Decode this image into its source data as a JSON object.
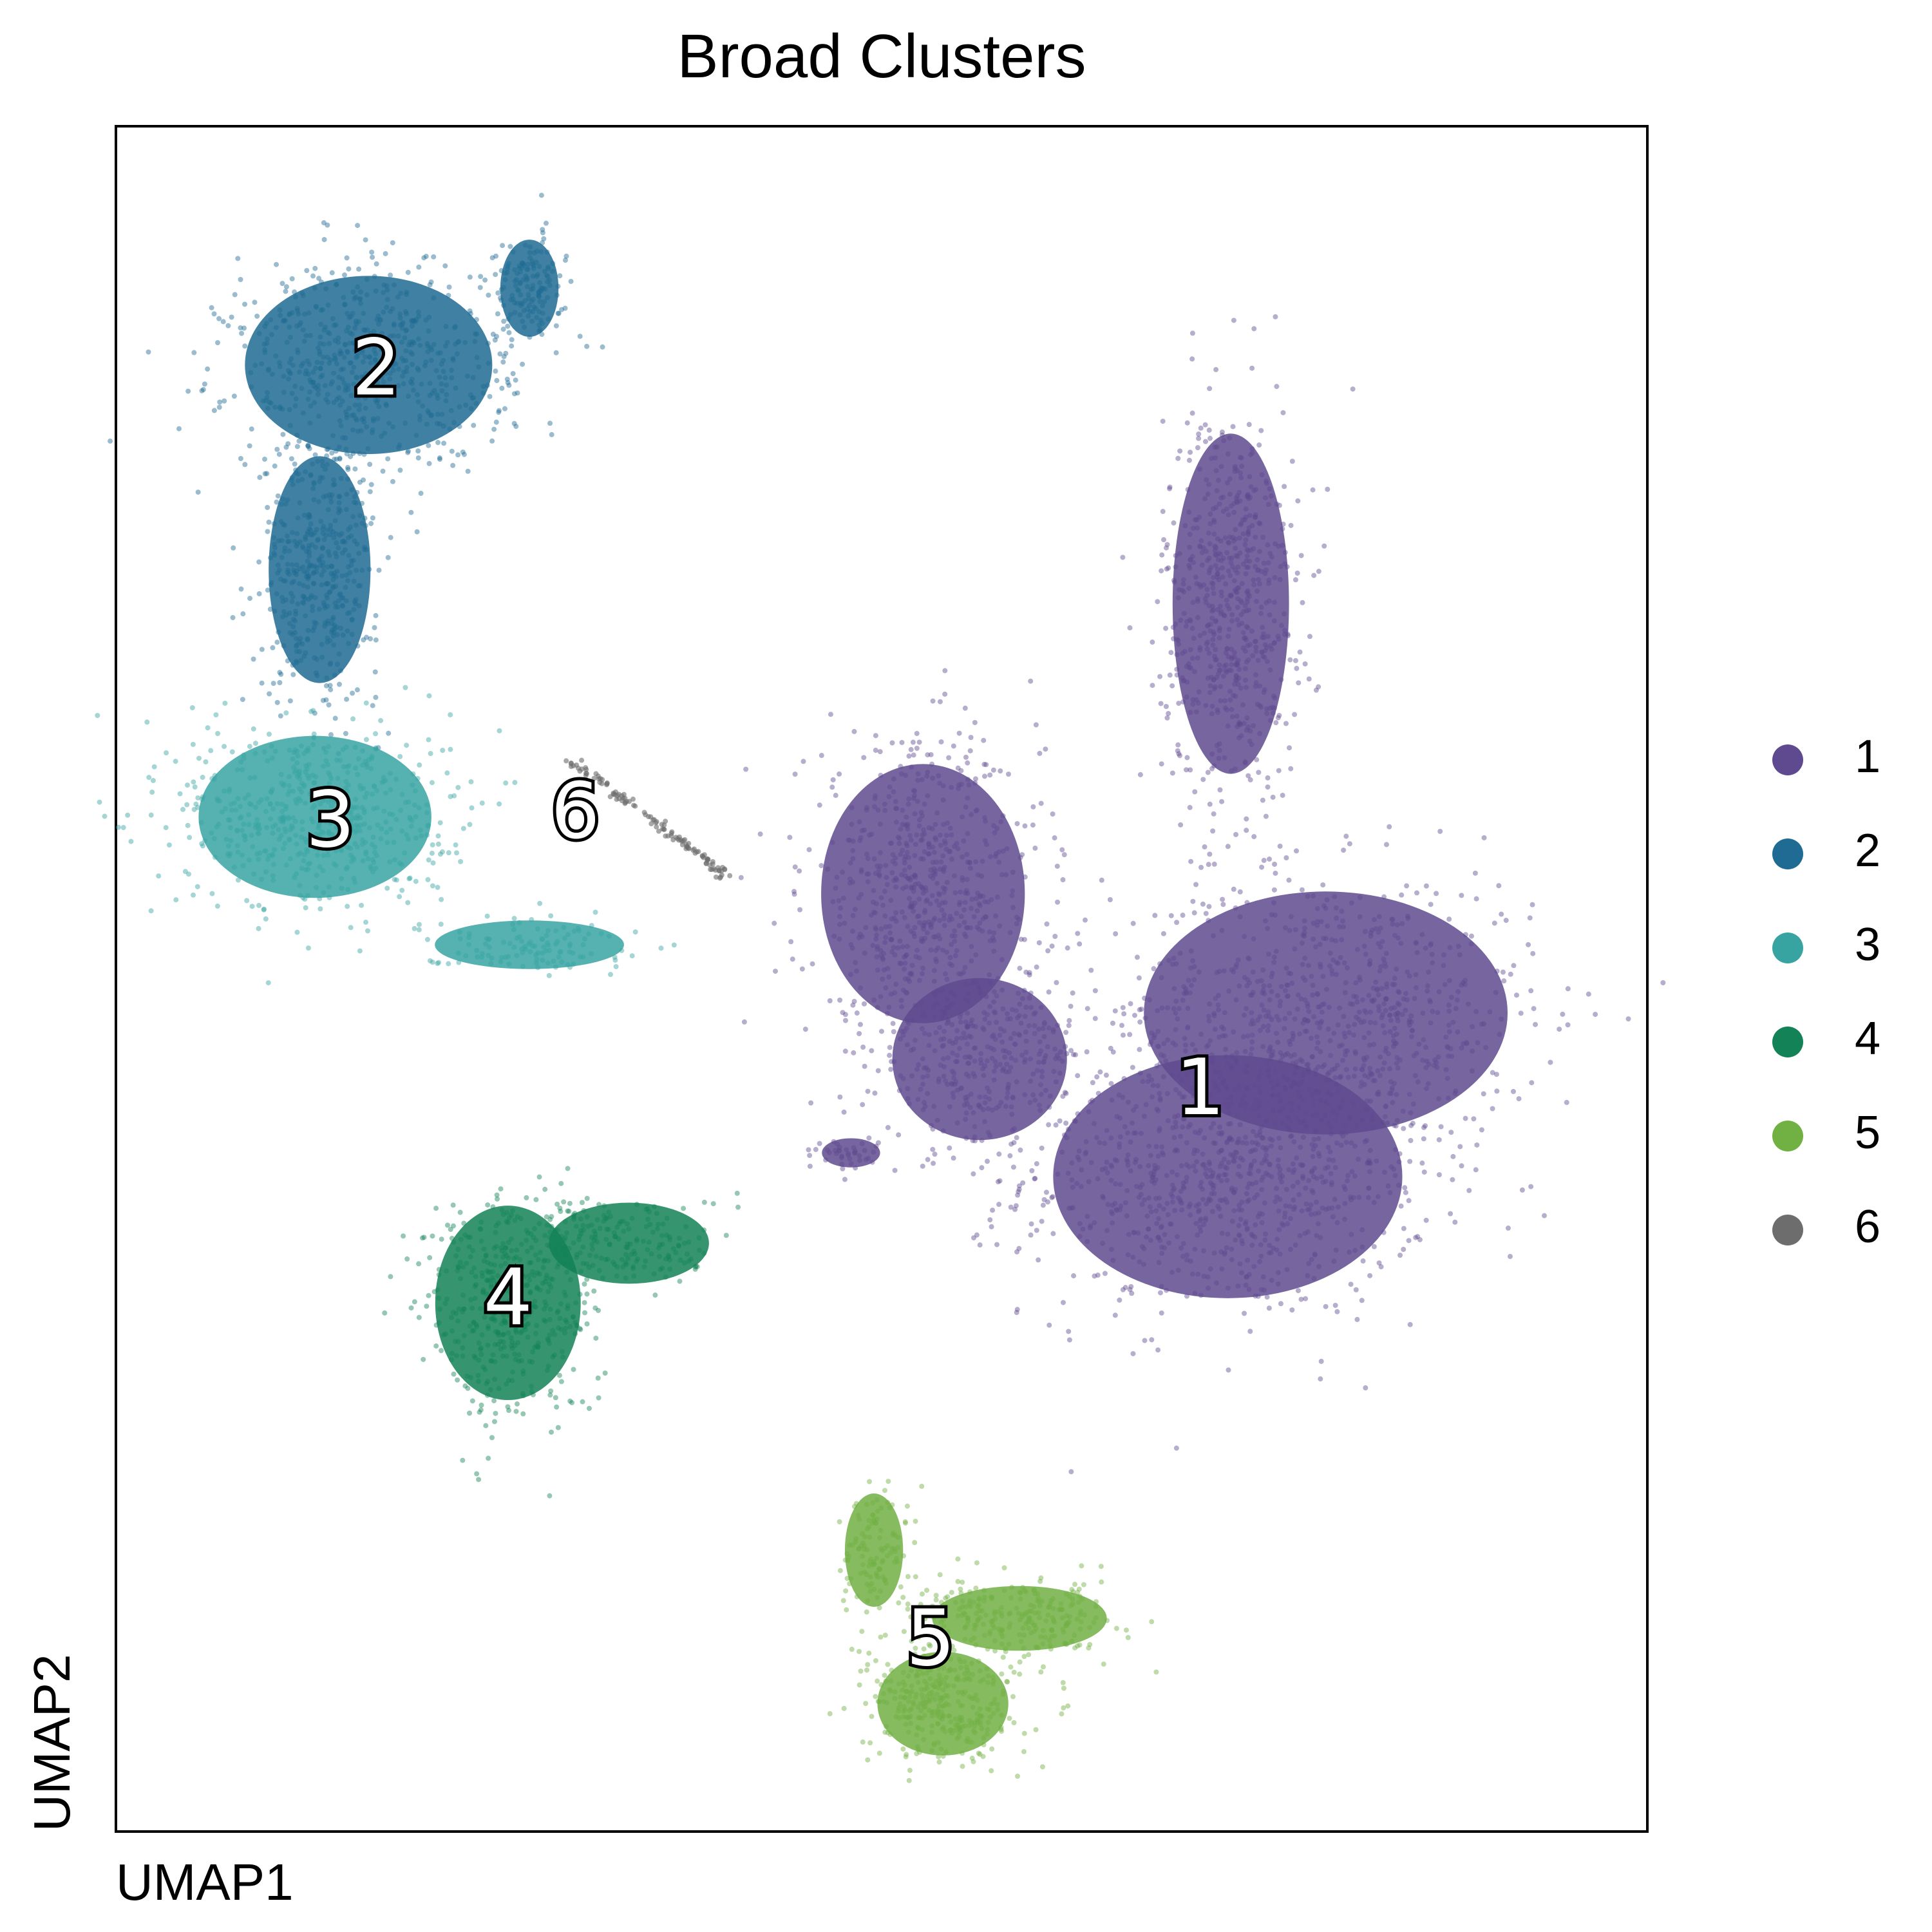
{
  "chart_data": {
    "type": "scatter",
    "title": "Broad Clusters",
    "xlabel": "UMAP1",
    "ylabel": "UMAP2",
    "xlim": [
      0,
      100
    ],
    "ylim": [
      0,
      100
    ],
    "grid": false,
    "legend_position": "right",
    "series": [
      {
        "name": "1",
        "color": "#5f4a8f",
        "label_at": [
          70.8,
          43.3
        ],
        "blobs": [
          {
            "cx": 72.6,
            "cy": 38.4,
            "rx": 12.0,
            "ry": 7.5,
            "n": 900
          },
          {
            "cx": 79.0,
            "cy": 48.0,
            "rx": 12.5,
            "ry": 7.5,
            "n": 800
          },
          {
            "cx": 72.8,
            "cy": 72.0,
            "rx": 4.0,
            "ry": 10.5,
            "n": 650
          },
          {
            "cx": 52.7,
            "cy": 55.0,
            "rx": 7.0,
            "ry": 8.0,
            "n": 650
          },
          {
            "cx": 56.4,
            "cy": 45.3,
            "rx": 6.0,
            "ry": 5.0,
            "n": 350
          },
          {
            "cx": 48.0,
            "cy": 39.8,
            "rx": 2.0,
            "ry": 0.9,
            "n": 40
          }
        ]
      },
      {
        "name": "2",
        "color": "#1f6b93",
        "label_at": [
          17.0,
          85.5
        ],
        "blobs": [
          {
            "cx": 16.5,
            "cy": 86.0,
            "rx": 8.5,
            "ry": 5.5,
            "n": 650
          },
          {
            "cx": 13.3,
            "cy": 74.0,
            "rx": 3.5,
            "ry": 7.0,
            "n": 450
          },
          {
            "cx": 27.0,
            "cy": 90.5,
            "rx": 2.0,
            "ry": 3.0,
            "n": 150
          }
        ]
      },
      {
        "name": "3",
        "color": "#37a4a2",
        "label_at": [
          14.0,
          59.0
        ],
        "blobs": [
          {
            "cx": 13.0,
            "cy": 59.5,
            "rx": 8.0,
            "ry": 5.0,
            "n": 600
          },
          {
            "cx": 27.0,
            "cy": 52.0,
            "rx": 6.5,
            "ry": 1.5,
            "n": 120
          }
        ]
      },
      {
        "name": "4",
        "color": "#138256",
        "label_at": [
          25.6,
          31.0
        ],
        "blobs": [
          {
            "cx": 25.6,
            "cy": 31.0,
            "rx": 5.0,
            "ry": 6.0,
            "n": 500
          },
          {
            "cx": 33.5,
            "cy": 34.5,
            "rx": 5.5,
            "ry": 2.5,
            "n": 180
          }
        ]
      },
      {
        "name": "5",
        "color": "#71b043",
        "label_at": [
          53.2,
          11.0
        ],
        "blobs": [
          {
            "cx": 54.0,
            "cy": 7.5,
            "rx": 4.5,
            "ry": 3.2,
            "n": 350
          },
          {
            "cx": 59.0,
            "cy": 12.5,
            "rx": 6.0,
            "ry": 2.0,
            "n": 250
          },
          {
            "cx": 49.5,
            "cy": 16.5,
            "rx": 2.0,
            "ry": 3.5,
            "n": 120
          }
        ]
      },
      {
        "name": "6",
        "color": "#6d6d6d",
        "label_at": [
          30.0,
          59.5
        ],
        "line": {
          "x0": 29.5,
          "y0": 63.0,
          "x1": 40.0,
          "y1": 56.0,
          "n": 120
        }
      }
    ]
  }
}
